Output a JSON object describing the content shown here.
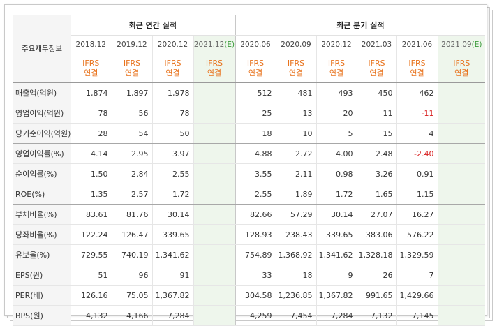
{
  "table": {
    "row_header": "주요재무정보",
    "groups": {
      "annual": "최근 연간 실적",
      "quarterly": "최근 분기 실적"
    },
    "periods": [
      {
        "label": "2018.12",
        "est": ""
      },
      {
        "label": "2019.12",
        "est": ""
      },
      {
        "label": "2020.12",
        "est": ""
      },
      {
        "label": "2021.12",
        "est": "(E)"
      },
      {
        "label": "2020.06",
        "est": ""
      },
      {
        "label": "2020.09",
        "est": ""
      },
      {
        "label": "2020.12",
        "est": ""
      },
      {
        "label": "2021.03",
        "est": ""
      },
      {
        "label": "2021.06",
        "est": ""
      },
      {
        "label": "2021.09",
        "est": "(E)"
      }
    ],
    "ifrs_top": "IFRS",
    "ifrs_bottom": "연결",
    "rows": [
      {
        "label": "매출액(억원)",
        "values": [
          "1,874",
          "1,897",
          "1,978",
          "",
          "512",
          "481",
          "493",
          "450",
          "462",
          ""
        ]
      },
      {
        "label": "영업이익(억원)",
        "values": [
          "78",
          "56",
          "78",
          "",
          "25",
          "13",
          "20",
          "11",
          "-11",
          ""
        ]
      },
      {
        "label": "당기순이익(억원)",
        "values": [
          "28",
          "54",
          "50",
          "",
          "18",
          "10",
          "5",
          "15",
          "4",
          ""
        ]
      },
      {
        "label": "영업이익률(%)",
        "values": [
          "4.14",
          "2.95",
          "3.97",
          "",
          "4.88",
          "2.72",
          "4.00",
          "2.48",
          "-2.40",
          ""
        ]
      },
      {
        "label": "순이익률(%)",
        "values": [
          "1.50",
          "2.84",
          "2.55",
          "",
          "3.55",
          "2.11",
          "0.98",
          "3.26",
          "0.91",
          ""
        ]
      },
      {
        "label": "ROE(%)",
        "values": [
          "1.35",
          "2.57",
          "1.72",
          "",
          "2.55",
          "1.89",
          "1.72",
          "1.65",
          "1.15",
          ""
        ]
      },
      {
        "label": "부채비율(%)",
        "values": [
          "83.61",
          "81.76",
          "30.14",
          "",
          "82.66",
          "57.29",
          "30.14",
          "27.07",
          "16.27",
          ""
        ]
      },
      {
        "label": "당좌비율(%)",
        "values": [
          "122.24",
          "126.47",
          "339.65",
          "",
          "128.93",
          "238.43",
          "339.65",
          "383.06",
          "576.22",
          ""
        ]
      },
      {
        "label": "유보율(%)",
        "values": [
          "729.55",
          "740.19",
          "1,341.62",
          "",
          "754.89",
          "1,368.92",
          "1,341.62",
          "1,328.18",
          "1,329.59",
          ""
        ]
      },
      {
        "label": "EPS(원)",
        "values": [
          "51",
          "96",
          "91",
          "",
          "33",
          "18",
          "9",
          "26",
          "7",
          ""
        ]
      },
      {
        "label": "PER(배)",
        "values": [
          "126.16",
          "75.05",
          "1,367.82",
          "",
          "304.58",
          "1,236.85",
          "1,367.82",
          "991.65",
          "1,429.66",
          ""
        ]
      },
      {
        "label": "BPS(원)",
        "values": [
          "4,132",
          "4,166",
          "7,284",
          "",
          "4,259",
          "7,454",
          "7,284",
          "7,132",
          "7,145",
          ""
        ]
      }
    ],
    "group_separator_after_rows": [
      2,
      5,
      8
    ],
    "colors": {
      "ifrs": "#e8731d",
      "negative": "#d81e1e",
      "estimate_bg": "#eef6ec",
      "estimate_mark": "#3a9b3a"
    }
  }
}
